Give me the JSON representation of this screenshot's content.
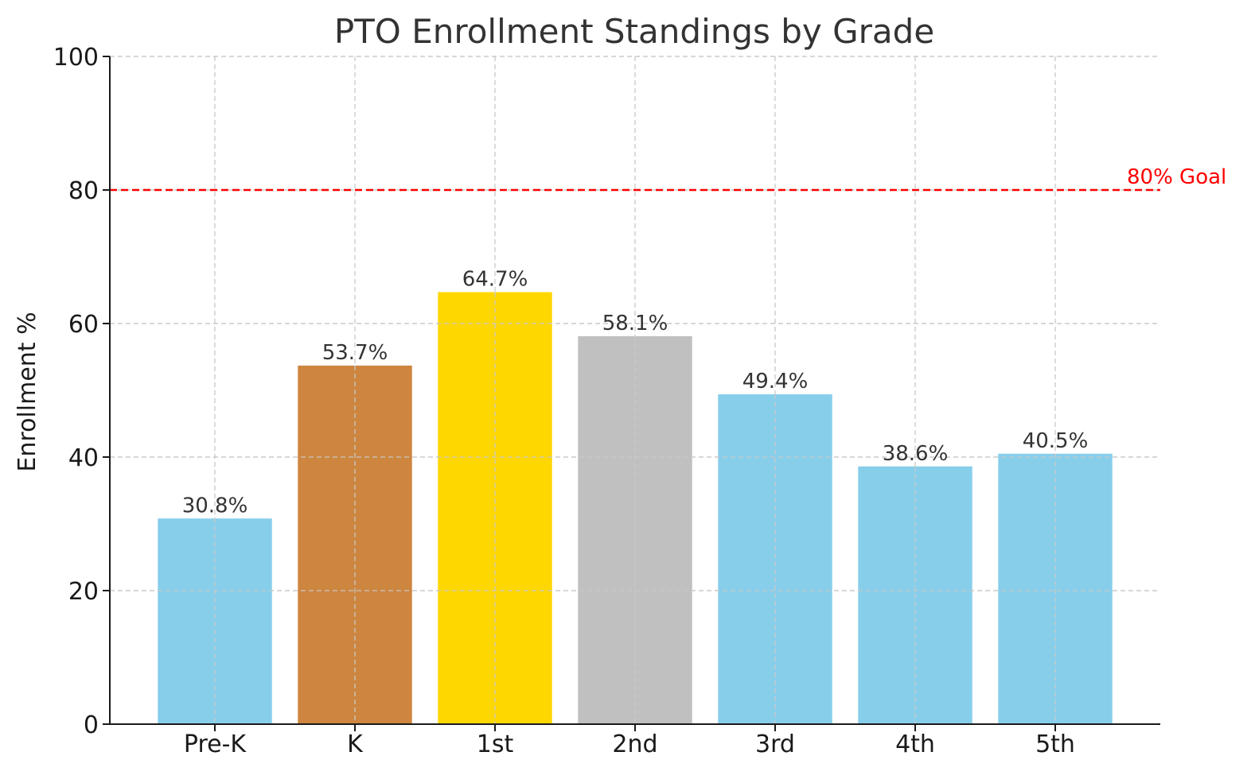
{
  "chart_data": {
    "type": "bar",
    "title": "PTO Enrollment Standings by Grade",
    "xlabel": "",
    "ylabel": "Enrollment %",
    "ylim": [
      0,
      100
    ],
    "yticks": [
      0,
      20,
      40,
      60,
      80,
      100
    ],
    "ytick_labels": [
      "0",
      "20",
      "40",
      "60",
      "80",
      "100"
    ],
    "grid": true,
    "categories": [
      "Pre-K",
      "K",
      "1st",
      "2nd",
      "3rd",
      "4th",
      "5th"
    ],
    "values": [
      30.8,
      53.7,
      64.7,
      58.1,
      49.4,
      38.6,
      40.5
    ],
    "value_labels": [
      "30.8%",
      "53.7%",
      "64.7%",
      "58.1%",
      "49.4%",
      "38.6%",
      "40.5%"
    ],
    "bar_colors": [
      "#87CEEB",
      "#CD853F",
      "#FFD700",
      "#C0C0C0",
      "#87CEEB",
      "#87CEEB",
      "#87CEEB"
    ],
    "goal": {
      "value": 80,
      "label": "80% Goal",
      "color": "#FF0000"
    }
  }
}
